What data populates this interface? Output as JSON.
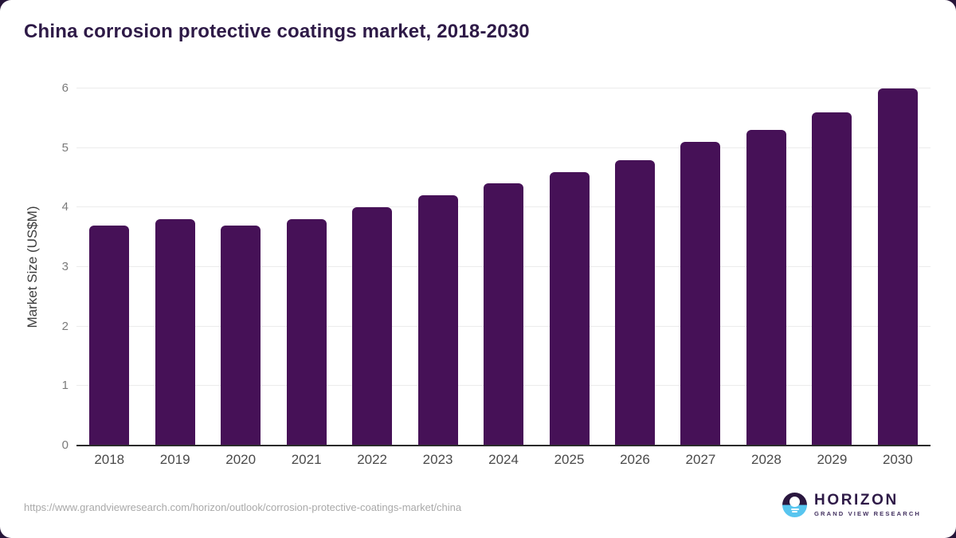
{
  "title": "China corrosion protective coatings market, 2018-2030",
  "chart_data": {
    "type": "bar",
    "categories": [
      "2018",
      "2019",
      "2020",
      "2021",
      "2022",
      "2023",
      "2024",
      "2025",
      "2026",
      "2027",
      "2028",
      "2029",
      "2030"
    ],
    "values": [
      3.7,
      3.8,
      3.7,
      3.8,
      4.0,
      4.2,
      4.4,
      4.6,
      4.8,
      5.1,
      5.3,
      5.6,
      6.0
    ],
    "title": "China corrosion protective coatings market, 2018-2030",
    "xlabel": "",
    "ylabel": "Market Size (US$M)",
    "ylim": [
      0,
      6
    ],
    "yticks": [
      0,
      1,
      2,
      3,
      4,
      5,
      6
    ],
    "grid": true,
    "legend": false,
    "bar_color": "#461157"
  },
  "footer": {
    "source_url": "https://www.grandviewresearch.com/horizon/outlook/corrosion-protective-coatings-market/china",
    "logo": {
      "title": "HORIZON",
      "subtitle": "GRAND VIEW RESEARCH"
    }
  },
  "colors": {
    "bar": "#461157",
    "title_text": "#2E1A47",
    "logo_blue": "#58C5EF",
    "logo_dark": "#2A173F",
    "page_background_corner": "#261539",
    "gridline": "#ececec",
    "axis_line": "#2b2b2b",
    "ytick_text": "#7b7b7b",
    "xtick_text": "#4a4a4a",
    "url_text": "#a9a9a9"
  }
}
